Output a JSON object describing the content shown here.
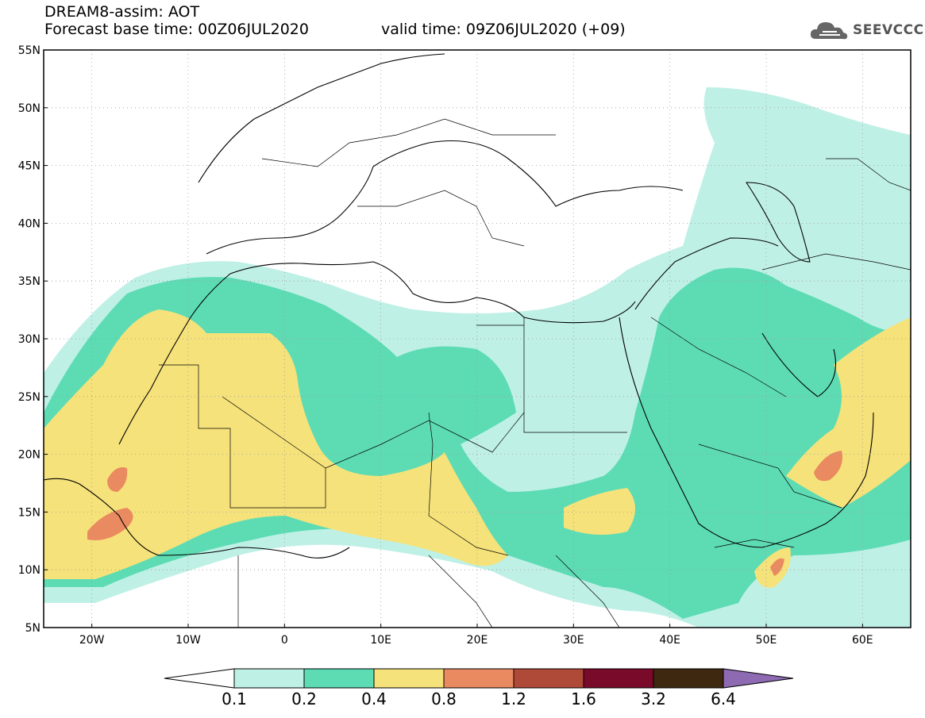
{
  "header": {
    "model_title": "DREAM8-assim: AOT",
    "base_time_line": "Forecast base time: 00Z06JUL2020",
    "valid_time_line": "valid time: 09Z06JUL2020 (+09)"
  },
  "logo": {
    "text": "SEEVCCC",
    "icon": "cloud-icon"
  },
  "map": {
    "lat_labels": [
      "55N",
      "50N",
      "45N",
      "40N",
      "35N",
      "30N",
      "25N",
      "20N",
      "15N",
      "10N",
      "5N"
    ],
    "lon_labels": [
      "20W",
      "10W",
      "0",
      "10E",
      "20E",
      "30E",
      "40E",
      "50E",
      "60E"
    ],
    "lat_values": [
      55,
      50,
      45,
      40,
      35,
      30,
      25,
      20,
      15,
      10,
      5
    ],
    "lon_values": [
      -20,
      -10,
      0,
      10,
      20,
      30,
      40,
      50,
      60
    ],
    "lon_range": [
      -25,
      65
    ],
    "lat_range": [
      5,
      55
    ]
  },
  "colorbar": {
    "labels": [
      "0.1",
      "0.2",
      "0.4",
      "0.8",
      "1.2",
      "1.6",
      "3.2",
      "6.4"
    ],
    "colors": [
      "#ffffff",
      "#bff0e6",
      "#5ddcb4",
      "#f6e27a",
      "#ea8a60",
      "#b04a38",
      "#7a0a2a",
      "#3e2810",
      "#8e6ab2"
    ]
  }
}
